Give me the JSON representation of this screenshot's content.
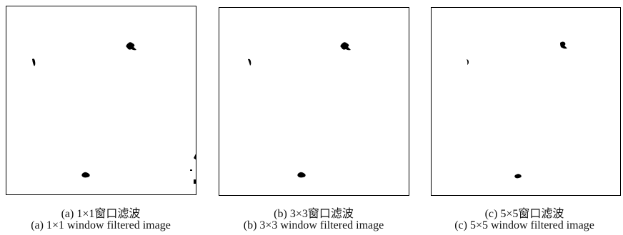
{
  "panels": [
    {
      "caption_cn": "(a)  1×1窗口滤波",
      "caption_en": "(a)  1×1 window filtered image"
    },
    {
      "caption_cn": "(b)  3×3窗口滤波",
      "caption_en": "(b)  3×3 window filtered image"
    },
    {
      "caption_cn": "(c)  5×5窗口滤波",
      "caption_en": "(c)  5×5 window filtered image"
    }
  ]
}
